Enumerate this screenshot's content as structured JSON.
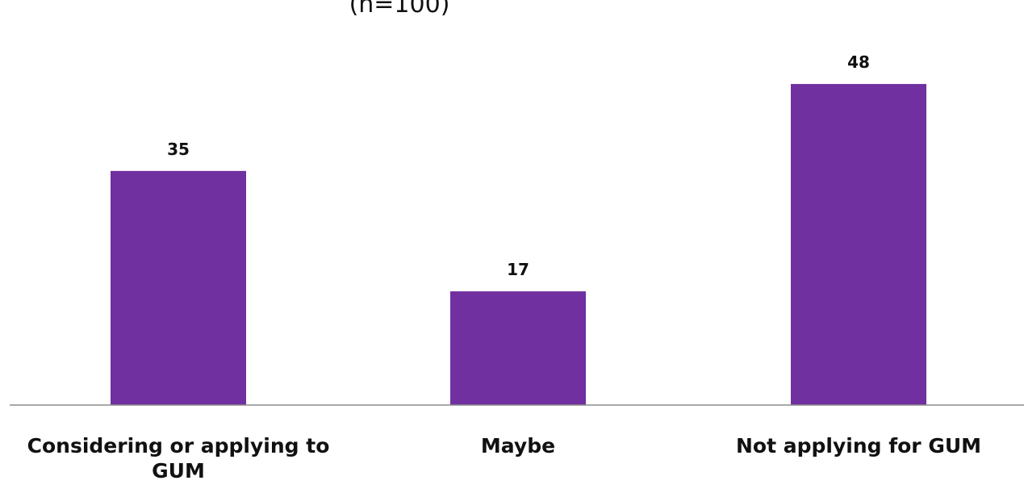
{
  "chart_data": {
    "type": "bar",
    "subtitle": "(n=100)",
    "categories": [
      "Considering or applying to GUM",
      "Maybe",
      "Not applying for GUM"
    ],
    "values": [
      35,
      17,
      48
    ],
    "ylim": [
      0,
      55
    ],
    "grid": false,
    "bar_color": "#7030a0",
    "axis_color": "#8c8c8c"
  }
}
